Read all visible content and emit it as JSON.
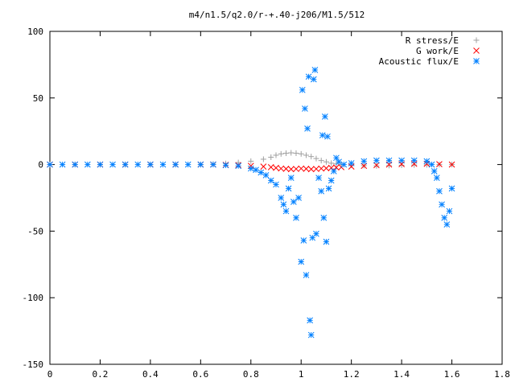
{
  "chart_data": {
    "type": "scatter",
    "title": "m4/n1.5/q2.0/r-+.40-j206/M1.5/512",
    "xlabel": "",
    "ylabel": "",
    "xlim": [
      0,
      1.8
    ],
    "ylim": [
      -150,
      100
    ],
    "xticks": [
      "0",
      "0.2",
      "0.4",
      "0.6",
      "0.8",
      "1",
      "1.2",
      "1.4",
      "1.6",
      "1.8"
    ],
    "yticks": [
      "100",
      "50",
      "0",
      "-50",
      "-100",
      "-150"
    ],
    "grid": false,
    "legend_position": "top-right",
    "series": [
      {
        "name": "R stress/E",
        "marker": "plus",
        "color": "#a0a0a0",
        "points": [
          [
            0.0,
            0
          ],
          [
            0.1,
            0
          ],
          [
            0.2,
            0
          ],
          [
            0.3,
            0
          ],
          [
            0.4,
            0
          ],
          [
            0.5,
            0
          ],
          [
            0.6,
            0
          ],
          [
            0.65,
            0.3
          ],
          [
            0.7,
            0.8
          ],
          [
            0.75,
            1.5
          ],
          [
            0.8,
            2.5
          ],
          [
            0.85,
            4
          ],
          [
            0.88,
            5.5
          ],
          [
            0.9,
            7
          ],
          [
            0.92,
            8
          ],
          [
            0.94,
            8.5
          ],
          [
            0.96,
            8.8
          ],
          [
            0.98,
            8.5
          ],
          [
            1.0,
            8
          ],
          [
            1.02,
            7
          ],
          [
            1.04,
            6
          ],
          [
            1.06,
            4.5
          ],
          [
            1.08,
            3
          ],
          [
            1.1,
            2
          ],
          [
            1.12,
            1
          ],
          [
            1.14,
            0.5
          ],
          [
            1.16,
            0
          ],
          [
            1.2,
            -0.5
          ],
          [
            1.25,
            -0.8
          ],
          [
            1.3,
            -1
          ],
          [
            1.35,
            -0.8
          ],
          [
            1.4,
            -0.5
          ],
          [
            1.45,
            -0.3
          ],
          [
            1.5,
            -0.2
          ],
          [
            1.55,
            0
          ],
          [
            1.6,
            0
          ]
        ]
      },
      {
        "name": "G work/E",
        "marker": "cross",
        "color": "#ff0000",
        "points": [
          [
            0.0,
            0
          ],
          [
            0.1,
            0
          ],
          [
            0.2,
            0
          ],
          [
            0.3,
            0
          ],
          [
            0.4,
            0
          ],
          [
            0.5,
            0
          ],
          [
            0.6,
            0
          ],
          [
            0.65,
            0
          ],
          [
            0.7,
            -0.2
          ],
          [
            0.75,
            -0.5
          ],
          [
            0.8,
            -1
          ],
          [
            0.85,
            -1.5
          ],
          [
            0.88,
            -2
          ],
          [
            0.9,
            -2.5
          ],
          [
            0.92,
            -3
          ],
          [
            0.94,
            -3.2
          ],
          [
            0.96,
            -3.5
          ],
          [
            0.98,
            -3.3
          ],
          [
            1.0,
            -3
          ],
          [
            1.02,
            -3.2
          ],
          [
            1.04,
            -3.5
          ],
          [
            1.06,
            -3.3
          ],
          [
            1.08,
            -3
          ],
          [
            1.1,
            -2.8
          ],
          [
            1.12,
            -2.5
          ],
          [
            1.14,
            -2.2
          ],
          [
            1.16,
            -2
          ],
          [
            1.2,
            -1.5
          ],
          [
            1.25,
            -1
          ],
          [
            1.3,
            -0.5
          ],
          [
            1.35,
            0
          ],
          [
            1.4,
            0.3
          ],
          [
            1.45,
            0.5
          ],
          [
            1.5,
            0.5
          ],
          [
            1.55,
            0.3
          ],
          [
            1.6,
            0
          ]
        ]
      },
      {
        "name": "Acoustic flux/E",
        "marker": "star",
        "color": "#0080ff",
        "points": [
          [
            0.0,
            0
          ],
          [
            0.05,
            0
          ],
          [
            0.1,
            0
          ],
          [
            0.15,
            0
          ],
          [
            0.2,
            0
          ],
          [
            0.25,
            0
          ],
          [
            0.3,
            0
          ],
          [
            0.35,
            0
          ],
          [
            0.4,
            0
          ],
          [
            0.45,
            0
          ],
          [
            0.5,
            0
          ],
          [
            0.55,
            0
          ],
          [
            0.6,
            0
          ],
          [
            0.65,
            0
          ],
          [
            0.7,
            -0.5
          ],
          [
            0.75,
            -1
          ],
          [
            0.8,
            -3
          ],
          [
            0.82,
            -4
          ],
          [
            0.84,
            -6
          ],
          [
            0.86,
            -8
          ],
          [
            0.88,
            -12
          ],
          [
            0.9,
            -15
          ],
          [
            0.92,
            -25
          ],
          [
            0.93,
            -30
          ],
          [
            0.94,
            -35
          ],
          [
            0.95,
            -18
          ],
          [
            0.96,
            -10
          ],
          [
            0.97,
            -28
          ],
          [
            0.98,
            -40
          ],
          [
            0.99,
            -25
          ],
          [
            1.0,
            -73
          ],
          [
            1.005,
            56
          ],
          [
            1.01,
            -57
          ],
          [
            1.015,
            42
          ],
          [
            1.02,
            -83
          ],
          [
            1.025,
            27
          ],
          [
            1.03,
            66
          ],
          [
            1.035,
            -117
          ],
          [
            1.04,
            -128
          ],
          [
            1.045,
            -55
          ],
          [
            1.05,
            64
          ],
          [
            1.055,
            71
          ],
          [
            1.06,
            -52
          ],
          [
            1.07,
            -10
          ],
          [
            1.08,
            -20
          ],
          [
            1.085,
            22
          ],
          [
            1.09,
            -40
          ],
          [
            1.095,
            36
          ],
          [
            1.1,
            -58
          ],
          [
            1.105,
            21
          ],
          [
            1.11,
            -18
          ],
          [
            1.12,
            -12
          ],
          [
            1.13,
            -5
          ],
          [
            1.14,
            5
          ],
          [
            1.15,
            2
          ],
          [
            1.17,
            0
          ],
          [
            1.2,
            1
          ],
          [
            1.25,
            2.5
          ],
          [
            1.3,
            3
          ],
          [
            1.35,
            3
          ],
          [
            1.4,
            3
          ],
          [
            1.45,
            3
          ],
          [
            1.5,
            2.5
          ],
          [
            1.52,
            0
          ],
          [
            1.53,
            -5
          ],
          [
            1.54,
            -10
          ],
          [
            1.55,
            -20
          ],
          [
            1.56,
            -30
          ],
          [
            1.57,
            -40
          ],
          [
            1.58,
            -45
          ],
          [
            1.59,
            -35
          ],
          [
            1.6,
            -18
          ]
        ]
      }
    ]
  }
}
